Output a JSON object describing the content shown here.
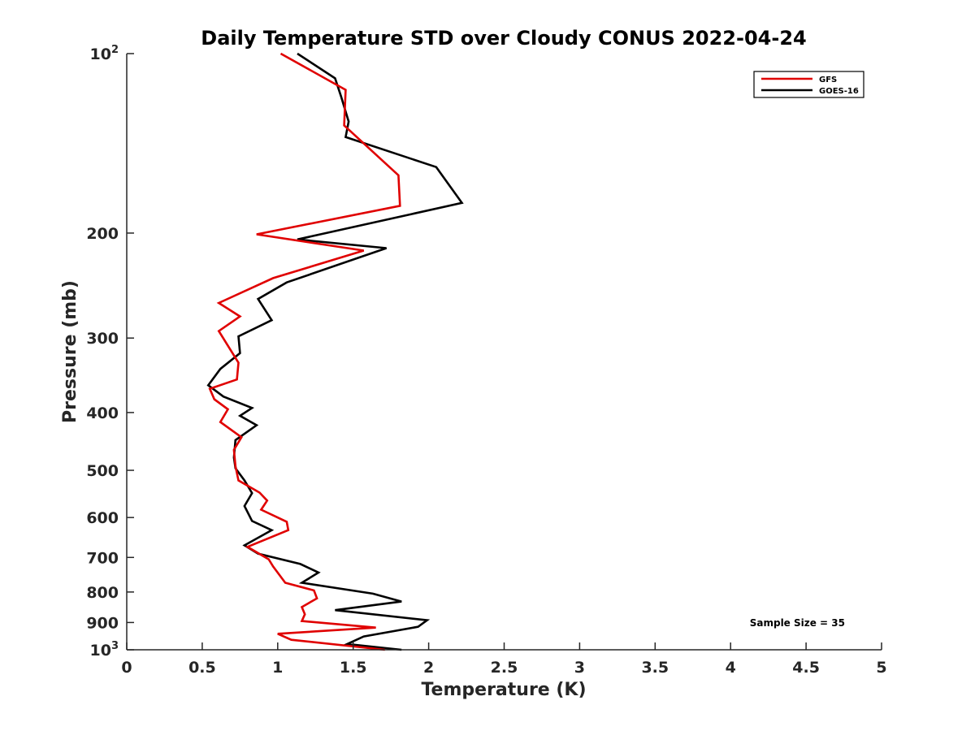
{
  "chart_data": {
    "type": "line",
    "title": "Daily Temperature STD over Cloudy CONUS 2022-04-24",
    "xlabel": "Temperature (K)",
    "ylabel": "Pressure (mb)",
    "xlim": [
      0,
      5
    ],
    "ylim": [
      100,
      1000
    ],
    "y_scale": "log",
    "y_reversed": true,
    "grid": false,
    "legend_position": "top-right",
    "x_ticks": [
      0,
      0.5,
      1,
      1.5,
      2,
      2.5,
      3,
      3.5,
      4,
      4.5,
      5
    ],
    "x_tick_labels": [
      "0",
      "0.5",
      "1",
      "1.5",
      "2",
      "2.5",
      "3",
      "3.5",
      "4",
      "4.5",
      "5"
    ],
    "y_ticks": [
      {
        "value": 100,
        "base": "10",
        "exp": "2"
      },
      {
        "value": 200,
        "label": "200"
      },
      {
        "value": 300,
        "label": "300"
      },
      {
        "value": 400,
        "label": "400"
      },
      {
        "value": 500,
        "label": "500"
      },
      {
        "value": 600,
        "label": "600"
      },
      {
        "value": 700,
        "label": "700"
      },
      {
        "value": 800,
        "label": "800"
      },
      {
        "value": 900,
        "label": "900"
      },
      {
        "value": 1000,
        "base": "10",
        "exp": "3"
      }
    ],
    "annotation": "Sample Size = 35",
    "series": [
      {
        "name": "GFS",
        "color": "#e00000",
        "x": [
          1.02,
          1.45,
          1.44,
          1.8,
          1.81,
          0.86,
          1.57,
          0.97,
          0.61,
          0.75,
          0.61,
          0.74,
          0.73,
          0.55,
          0.58,
          0.67,
          0.62,
          0.76,
          0.71,
          0.72,
          0.74,
          0.88,
          0.93,
          0.89,
          1.06,
          1.07,
          0.8,
          0.94,
          0.97,
          1.05,
          1.24,
          1.26,
          1.16,
          1.18,
          1.16,
          1.65,
          1.0,
          1.09,
          1.71
        ],
        "y": [
          100,
          115,
          132,
          160,
          180,
          201,
          214,
          238,
          262,
          276,
          292,
          330,
          352,
          365,
          380,
          395,
          415,
          440,
          462,
          492,
          520,
          545,
          562,
          582,
          610,
          630,
          672,
          705,
          725,
          772,
          795,
          820,
          848,
          872,
          895,
          918,
          940,
          962,
          1000
        ]
      },
      {
        "name": "GOES-16",
        "color": "#000000",
        "x": [
          1.13,
          1.38,
          1.42,
          1.47,
          1.45,
          2.05,
          2.22,
          1.13,
          1.72,
          1.06,
          0.87,
          0.96,
          0.74,
          0.75,
          0.62,
          0.54,
          0.64,
          0.83,
          0.75,
          0.86,
          0.72,
          0.71,
          0.72,
          0.78,
          0.83,
          0.78,
          0.83,
          0.96,
          0.78,
          0.87,
          1.15,
          1.27,
          1.16,
          1.63,
          1.82,
          1.38,
          1.99,
          1.93,
          1.57,
          1.46,
          1.82
        ],
        "y": [
          100,
          110,
          118,
          130,
          138,
          155,
          178,
          205,
          212,
          242,
          258,
          280,
          298,
          318,
          338,
          360,
          376,
          393,
          405,
          420,
          445,
          476,
          496,
          520,
          546,
          574,
          608,
          630,
          668,
          690,
          718,
          742,
          772,
          805,
          830,
          858,
          892,
          915,
          950,
          978,
          1000
        ]
      }
    ]
  }
}
